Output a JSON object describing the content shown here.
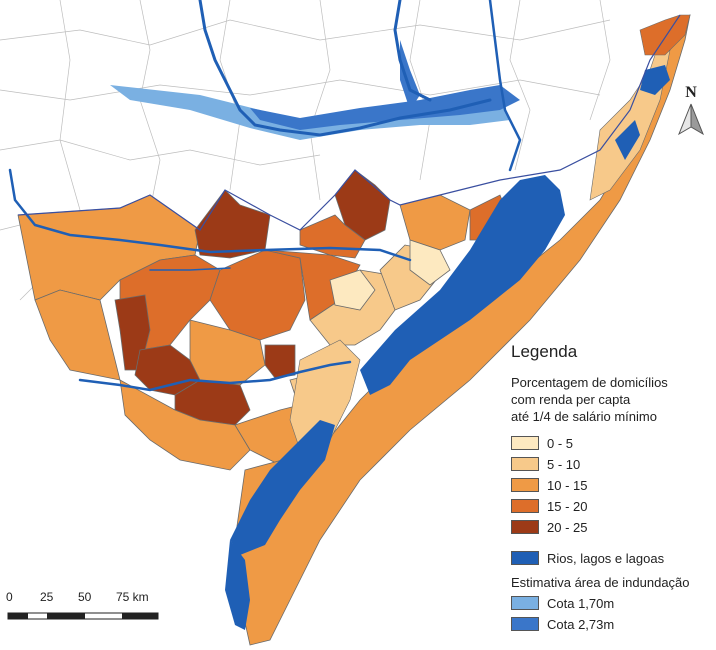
{
  "north": {
    "letter": "N"
  },
  "legend": {
    "title": "Legenda",
    "subtitle_lines": [
      "Porcentagem de domicílios",
      "com renda per capta",
      "até 1/4 de salário mínimo"
    ],
    "classes": [
      {
        "label": "0 - 5",
        "color": "#fde9c0"
      },
      {
        "label": "5 - 10",
        "color": "#f7c98a"
      },
      {
        "label": "10 - 15",
        "color": "#ef9a45"
      },
      {
        "label": "15 - 20",
        "color": "#dd6e2a"
      },
      {
        "label": "20 - 25",
        "color": "#9c3a17"
      }
    ],
    "water": {
      "label": "Rios, lagos e lagoas",
      "color": "#1f5fb5"
    },
    "flood_title": "Estimativa área de indundação",
    "flood": [
      {
        "label": "Cota 1,70m",
        "color": "#7ab0e2"
      },
      {
        "label": "Cota 2,73m",
        "color": "#3a76c9"
      }
    ]
  },
  "scale": {
    "labels": [
      "0",
      "25",
      "50",
      "75 km"
    ]
  }
}
